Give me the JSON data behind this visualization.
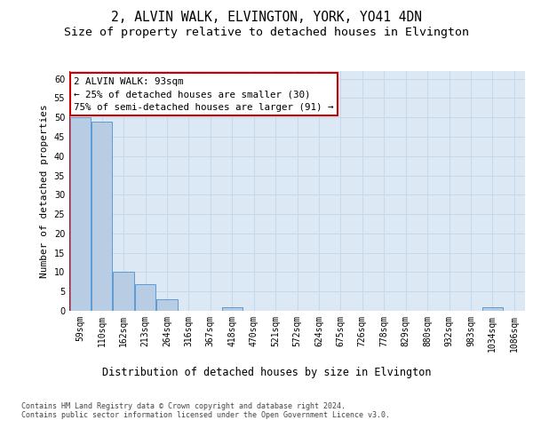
{
  "title_line1": "2, ALVIN WALK, ELVINGTON, YORK, YO41 4DN",
  "title_line2": "Size of property relative to detached houses in Elvington",
  "xlabel": "Distribution of detached houses by size in Elvington",
  "ylabel": "Number of detached properties",
  "categories": [
    "59sqm",
    "110sqm",
    "162sqm",
    "213sqm",
    "264sqm",
    "316sqm",
    "367sqm",
    "418sqm",
    "470sqm",
    "521sqm",
    "572sqm",
    "624sqm",
    "675sqm",
    "726sqm",
    "778sqm",
    "829sqm",
    "880sqm",
    "932sqm",
    "983sqm",
    "1034sqm",
    "1086sqm"
  ],
  "values": [
    50,
    49,
    10,
    7,
    3,
    0,
    0,
    1,
    0,
    0,
    0,
    0,
    0,
    0,
    0,
    0,
    0,
    0,
    0,
    1,
    0
  ],
  "bar_color": "#b8cce4",
  "bar_edge_color": "#5b9bd5",
  "property_line_color": "#cc0000",
  "annotation_text": "2 ALVIN WALK: 93sqm\n← 25% of detached houses are smaller (30)\n75% of semi-detached houses are larger (91) →",
  "annotation_box_color": "#ffffff",
  "annotation_box_edge_color": "#cc0000",
  "ylim": [
    0,
    62
  ],
  "yticks": [
    0,
    5,
    10,
    15,
    20,
    25,
    30,
    35,
    40,
    45,
    50,
    55,
    60
  ],
  "grid_color": "#c5d8ed",
  "background_color": "#dce9f5",
  "footer_text": "Contains HM Land Registry data © Crown copyright and database right 2024.\nContains public sector information licensed under the Open Government Licence v3.0.",
  "title_fontsize": 10.5,
  "subtitle_fontsize": 9.5,
  "tick_fontsize": 7,
  "ylabel_fontsize": 8,
  "xlabel_fontsize": 8.5,
  "annotation_fontsize": 7.8,
  "footer_fontsize": 6.0
}
